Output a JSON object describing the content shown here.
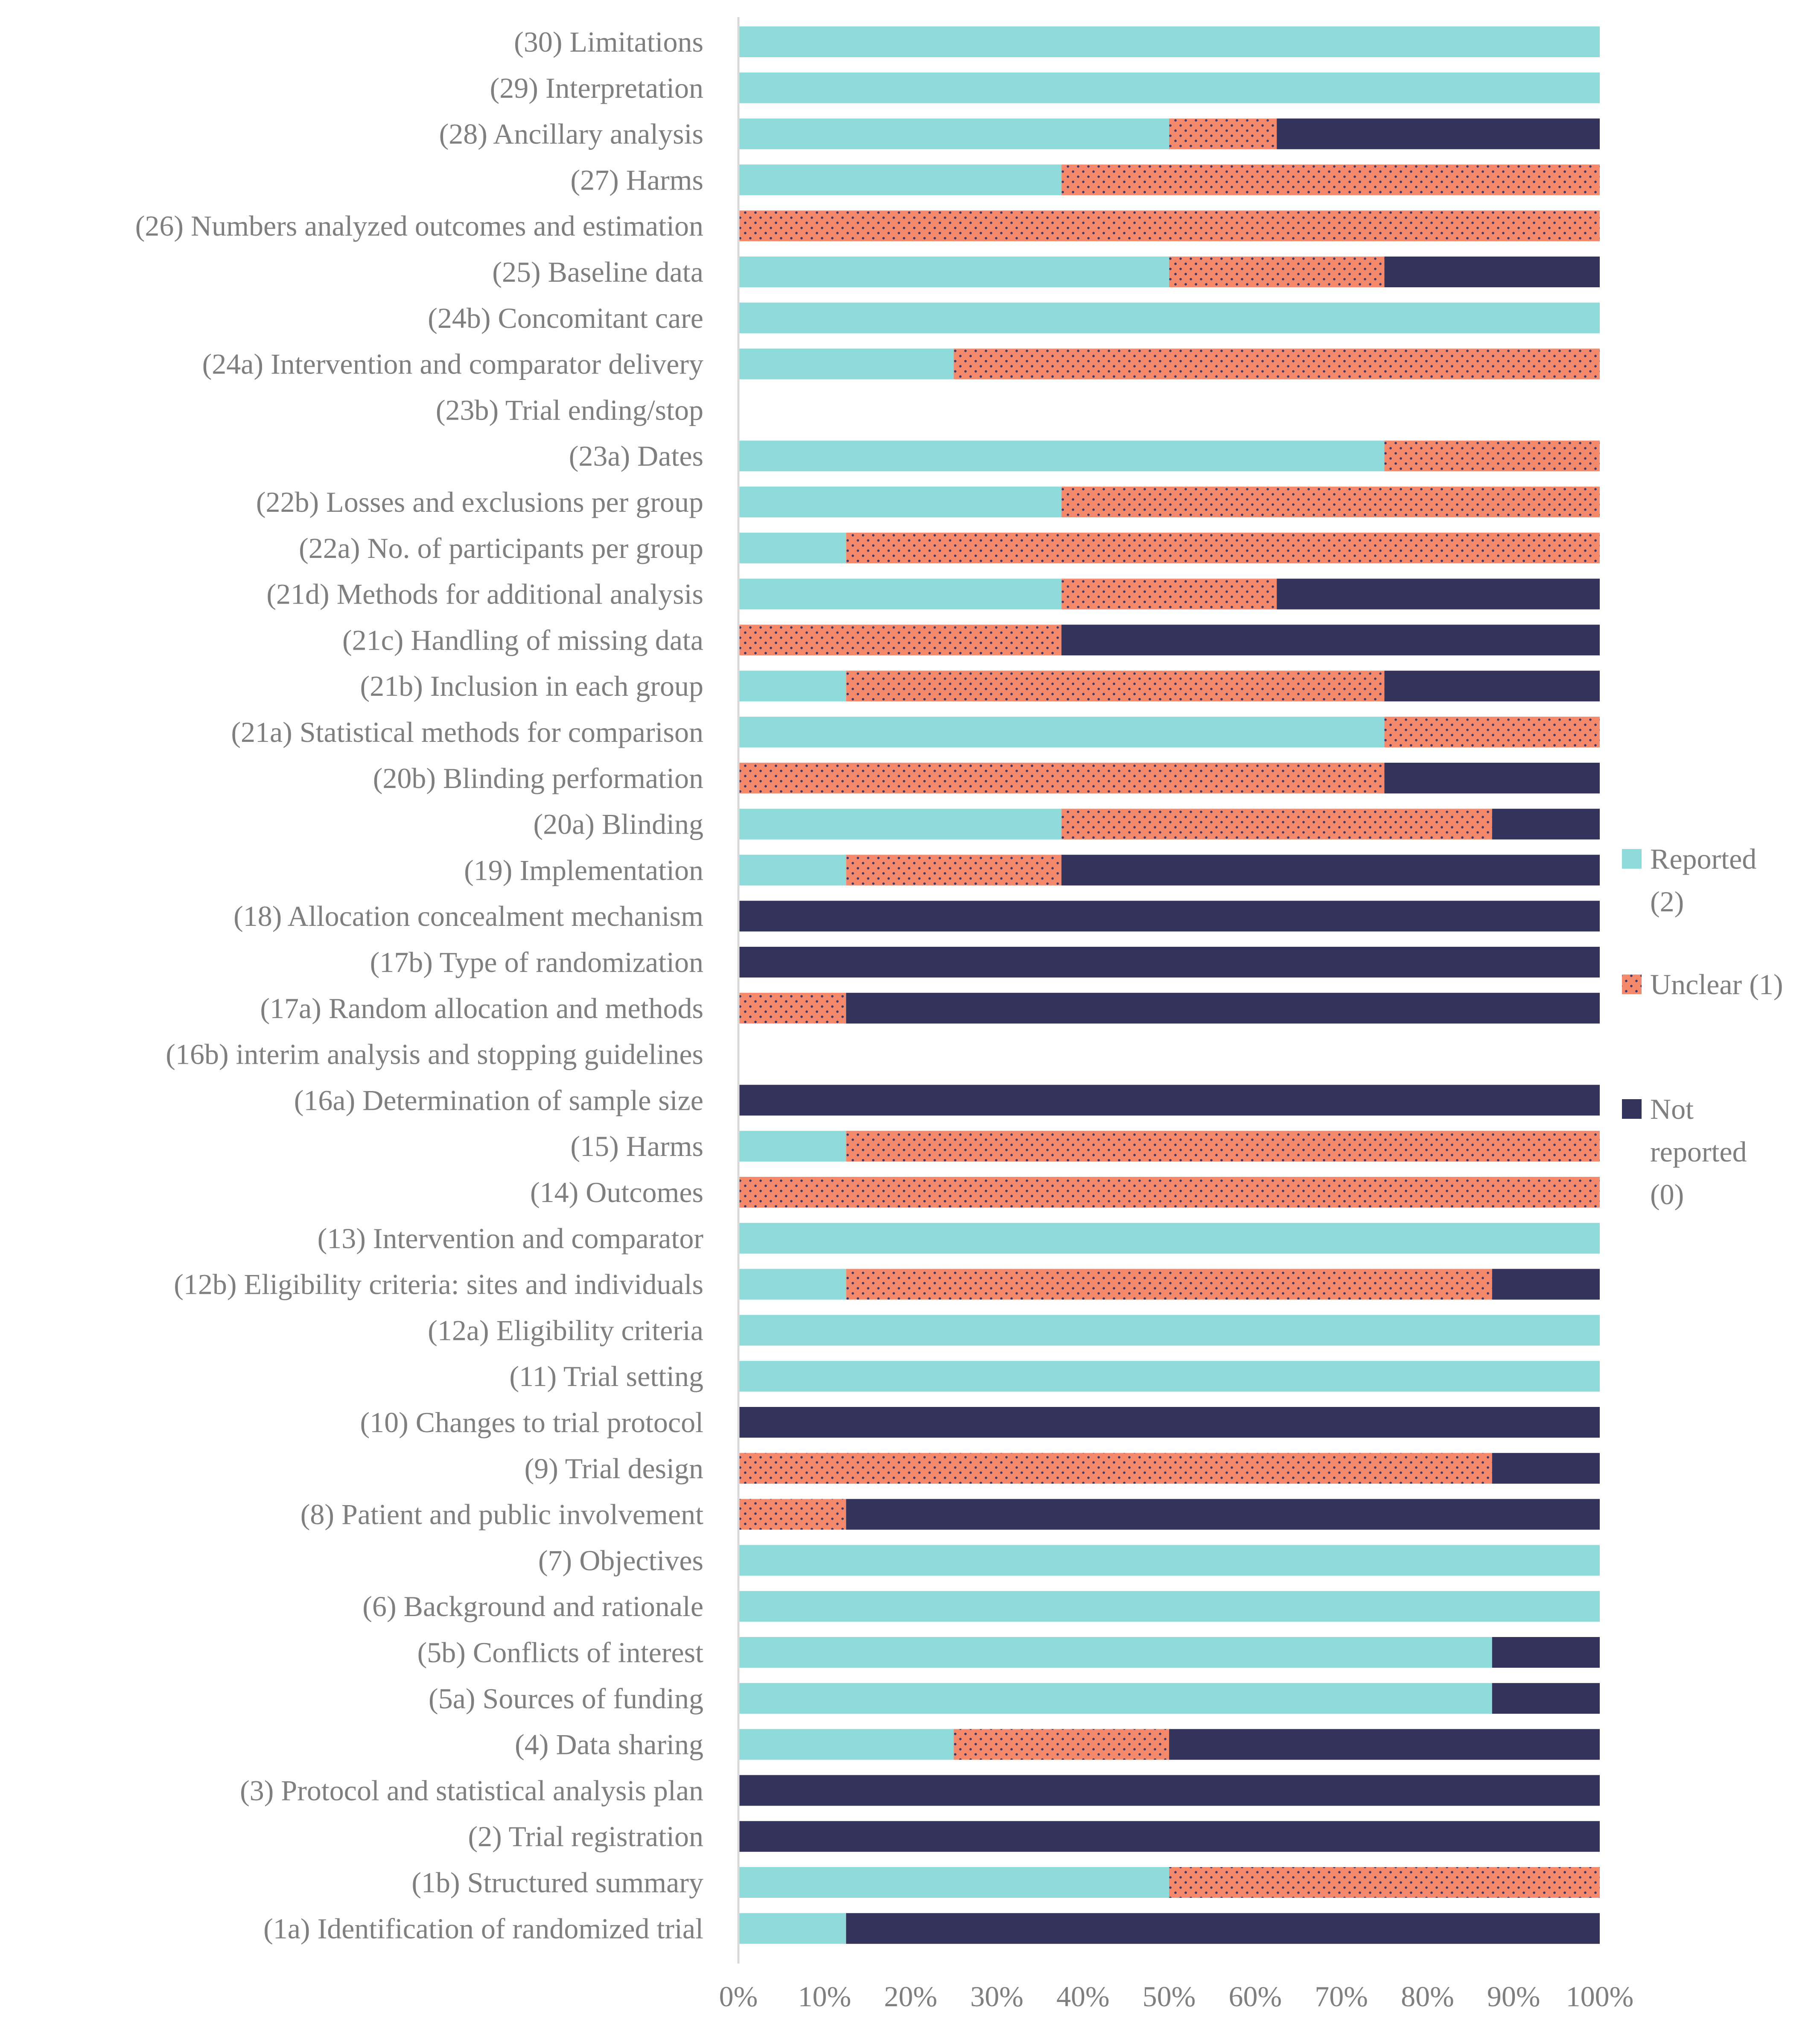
{
  "chart_data": {
    "type": "bar",
    "orientation": "horizontal",
    "stacked": true,
    "percent": true,
    "xlim": [
      0,
      100
    ],
    "xticks": [
      "0%",
      "10%",
      "20%",
      "30%",
      "40%",
      "50%",
      "60%",
      "70%",
      "80%",
      "90%",
      "100%"
    ],
    "categories": [
      "(30) Limitations",
      "(29) Interpretation",
      "(28) Ancillary analysis",
      "(27) Harms",
      "(26) Numbers analyzed outcomes and estimation",
      "(25) Baseline data",
      "(24b) Concomitant care",
      "(24a) Intervention and comparator delivery",
      "(23b) Trial ending/stop",
      "(23a) Dates",
      "(22b) Losses and exclusions per group",
      "(22a) No. of participants per group",
      "(21d) Methods for additional analysis",
      "(21c) Handling of missing data",
      "(21b) Inclusion in each group",
      "(21a) Statistical methods for comparison",
      "(20b) Blinding performation",
      "(20a) Blinding",
      "(19) Implementation",
      "(18) Allocation concealment mechanism",
      "(17b) Type of randomization",
      "(17a) Random allocation and methods",
      "(16b) interim analysis and stopping guidelines",
      "(16a) Determination of sample size",
      "(15) Harms",
      "(14) Outcomes",
      "(13) Intervention and comparator",
      "(12b) Eligibility criteria: sites and individuals",
      "(12a) Eligibility criteria",
      "(11) Trial setting",
      "(10) Changes to trial protocol",
      "(9) Trial design",
      "(8) Patient and public involvement",
      "(7) Objectives",
      "(6) Background and rationale",
      "(5b) Conflicts of interest",
      "(5a) Sources of funding",
      "(4) Data sharing",
      "(3) Protocol and statistical analysis plan",
      "(2) Trial registration",
      "(1b) Structured summary",
      "(1a) Identification of randomized trial"
    ],
    "series": [
      {
        "name": "Reported (2)",
        "legend_lines": [
          "Reported",
          "(2)"
        ],
        "color": "#8fdbdc",
        "pattern": "solid",
        "values": [
          100,
          100,
          50,
          37.5,
          0,
          50,
          100,
          25,
          0,
          75,
          37.5,
          12.5,
          37.5,
          0,
          12.5,
          75,
          0,
          37.5,
          12.5,
          0,
          0,
          0,
          0,
          0,
          12.5,
          0,
          100,
          12.5,
          100,
          100,
          0,
          0,
          0,
          100,
          100,
          87.5,
          87.5,
          25,
          0,
          0,
          50,
          12.5
        ]
      },
      {
        "name": "Unclear (1)",
        "legend_lines": [
          "Unclear (1)"
        ],
        "color": "#f4896b",
        "pattern": "dotted",
        "values": [
          0,
          0,
          12.5,
          62.5,
          100,
          25,
          0,
          75,
          0,
          25,
          62.5,
          87.5,
          25,
          37.5,
          62.5,
          25,
          75,
          50,
          25,
          0,
          0,
          12.5,
          0,
          0,
          87.5,
          100,
          0,
          75,
          0,
          0,
          0,
          87.5,
          12.5,
          0,
          0,
          0,
          0,
          25,
          0,
          0,
          50,
          0
        ]
      },
      {
        "name": "Not reported (0)",
        "legend_lines": [
          "Not",
          "reported",
          "(0)"
        ],
        "color": "#34335c",
        "pattern": "solid",
        "values": [
          0,
          0,
          37.5,
          0,
          0,
          25,
          0,
          0,
          0,
          0,
          0,
          0,
          37.5,
          62.5,
          25,
          0,
          25,
          12.5,
          62.5,
          100,
          100,
          87.5,
          0,
          100,
          0,
          0,
          0,
          12.5,
          0,
          0,
          100,
          12.5,
          87.5,
          0,
          0,
          12.5,
          12.5,
          50,
          100,
          100,
          0,
          87.5
        ]
      }
    ],
    "title": "",
    "xlabel": "",
    "ylabel": "",
    "legend_position": "right",
    "axis_color": "#d9d9d9"
  }
}
